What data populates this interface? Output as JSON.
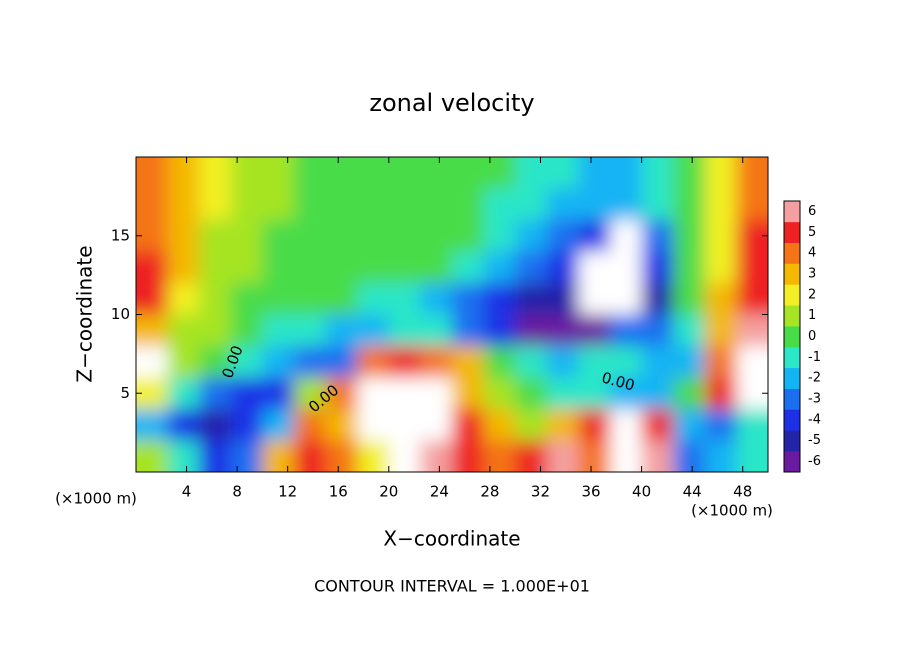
{
  "chart_data": {
    "type": "contour",
    "title": "zonal velocity",
    "x_label": "X−coordinate",
    "y_label": "Z−coordinate",
    "x_unit": "(×1000 m)",
    "y_unit": "(×1000 m)",
    "footer": "CONTOUR INTERVAL = 1.000E+01",
    "contour_labels": [
      "0.00",
      "0.00",
      "0.00"
    ],
    "xlim": [
      0,
      50
    ],
    "ylim": [
      0,
      20
    ],
    "xticks": [
      4,
      8,
      12,
      16,
      20,
      24,
      28,
      32,
      36,
      40,
      44,
      48
    ],
    "yticks": [
      5,
      10,
      15
    ],
    "colorbar": {
      "ticks": [
        -6,
        -5,
        -4,
        -3,
        -2,
        -1,
        0,
        1,
        2,
        3,
        4,
        5,
        6
      ],
      "colors": [
        "#6a1aa0",
        "#2424a8",
        "#1e30e6",
        "#1a70f0",
        "#12b4f4",
        "#2ce6c8",
        "#48dc48",
        "#a6e424",
        "#f2f024",
        "#f4b800",
        "#f47418",
        "#ee2222",
        "#f4a0a0"
      ],
      "above_color": "#ffffff"
    },
    "z": [
      [
        4,
        3,
        2,
        1,
        1,
        0,
        0,
        0,
        0,
        0,
        0,
        0,
        -1,
        -1,
        -2,
        -2,
        -1,
        0,
        2,
        4
      ],
      [
        4,
        3,
        2,
        1,
        1,
        0,
        0,
        0,
        0,
        0,
        0,
        -1,
        -1,
        -2,
        -2,
        -2,
        -1,
        0,
        2,
        4
      ],
      [
        4,
        3,
        1,
        1,
        0,
        0,
        0,
        0,
        0,
        0,
        0,
        -1,
        -2,
        -3,
        -4,
        7,
        -3,
        0,
        2,
        5
      ],
      [
        5,
        3,
        1,
        1,
        0,
        0,
        0,
        0,
        0,
        0,
        -1,
        -2,
        -3,
        -4,
        7,
        8,
        -4,
        0,
        2,
        5
      ],
      [
        5,
        2,
        1,
        0,
        0,
        0,
        0,
        -1,
        -1,
        -2,
        -3,
        -4,
        -5,
        -5,
        8,
        8,
        -5,
        0,
        3,
        5
      ],
      [
        3,
        1,
        1,
        0,
        -1,
        -1,
        -2,
        -2,
        -1,
        -1,
        -3,
        -4,
        -6,
        -6,
        -6,
        -3,
        -3,
        -1,
        3,
        6
      ],
      [
        7,
        1,
        0,
        -1,
        -2,
        -3,
        -3,
        4,
        5,
        4,
        3,
        0,
        -1,
        -2,
        -1,
        -1,
        -2,
        -2,
        4,
        7
      ],
      [
        2,
        -1,
        -3,
        -4,
        -4,
        1,
        4,
        7,
        8,
        7,
        3,
        1,
        0,
        -1,
        -1,
        -2,
        -2,
        0,
        5,
        8
      ],
      [
        -2,
        -4,
        -5,
        -4,
        -2,
        4,
        3,
        8,
        8,
        8,
        5,
        3,
        1,
        3,
        5,
        8,
        5,
        -2,
        -3,
        -1
      ],
      [
        1,
        -1,
        -4,
        -3,
        3,
        5,
        4,
        2,
        7,
        6,
        5,
        4,
        5,
        6,
        4,
        7,
        6,
        -3,
        -2,
        -1
      ]
    ]
  }
}
